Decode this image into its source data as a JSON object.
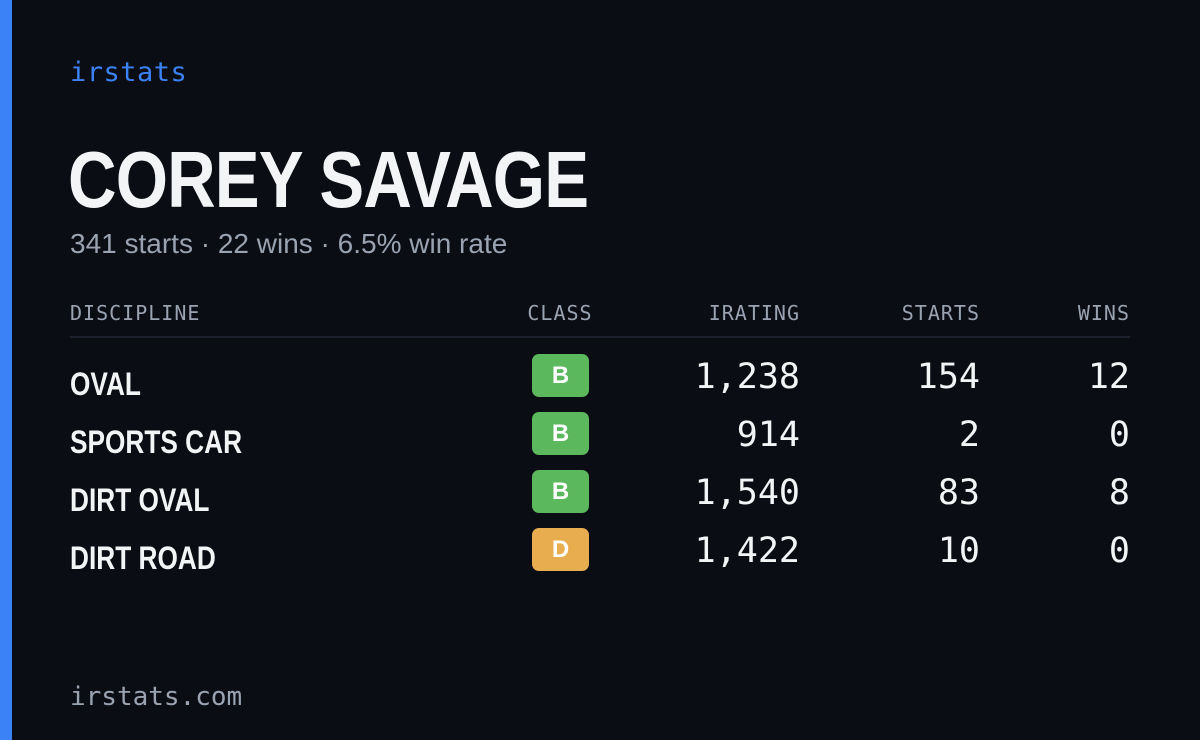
{
  "brand": "irstats",
  "player": {
    "name": "COREY SAVAGE",
    "summary": "341 starts · 22 wins · 6.5% win rate"
  },
  "table": {
    "headers": {
      "discipline": "DISCIPLINE",
      "class": "CLASS",
      "irating": "IRATING",
      "starts": "STARTS",
      "wins": "WINS"
    },
    "rows": [
      {
        "discipline": "OVAL",
        "class": "B",
        "class_color": "#5cb85c",
        "irating": "1,238",
        "starts": "154",
        "wins": "12"
      },
      {
        "discipline": "SPORTS CAR",
        "class": "B",
        "class_color": "#5cb85c",
        "irating": "914",
        "starts": "2",
        "wins": "0"
      },
      {
        "discipline": "DIRT OVAL",
        "class": "B",
        "class_color": "#5cb85c",
        "irating": "1,540",
        "starts": "83",
        "wins": "8"
      },
      {
        "discipline": "DIRT ROAD",
        "class": "D",
        "class_color": "#e8ad4f",
        "irating": "1,422",
        "starts": "10",
        "wins": "0"
      }
    ]
  },
  "footer": {
    "url": "irstats.com"
  },
  "colors": {
    "background": "#0a0d14",
    "accent": "#3b82f6",
    "muted_text": "#9aa3b2",
    "primary_text": "#f3f4f6"
  }
}
